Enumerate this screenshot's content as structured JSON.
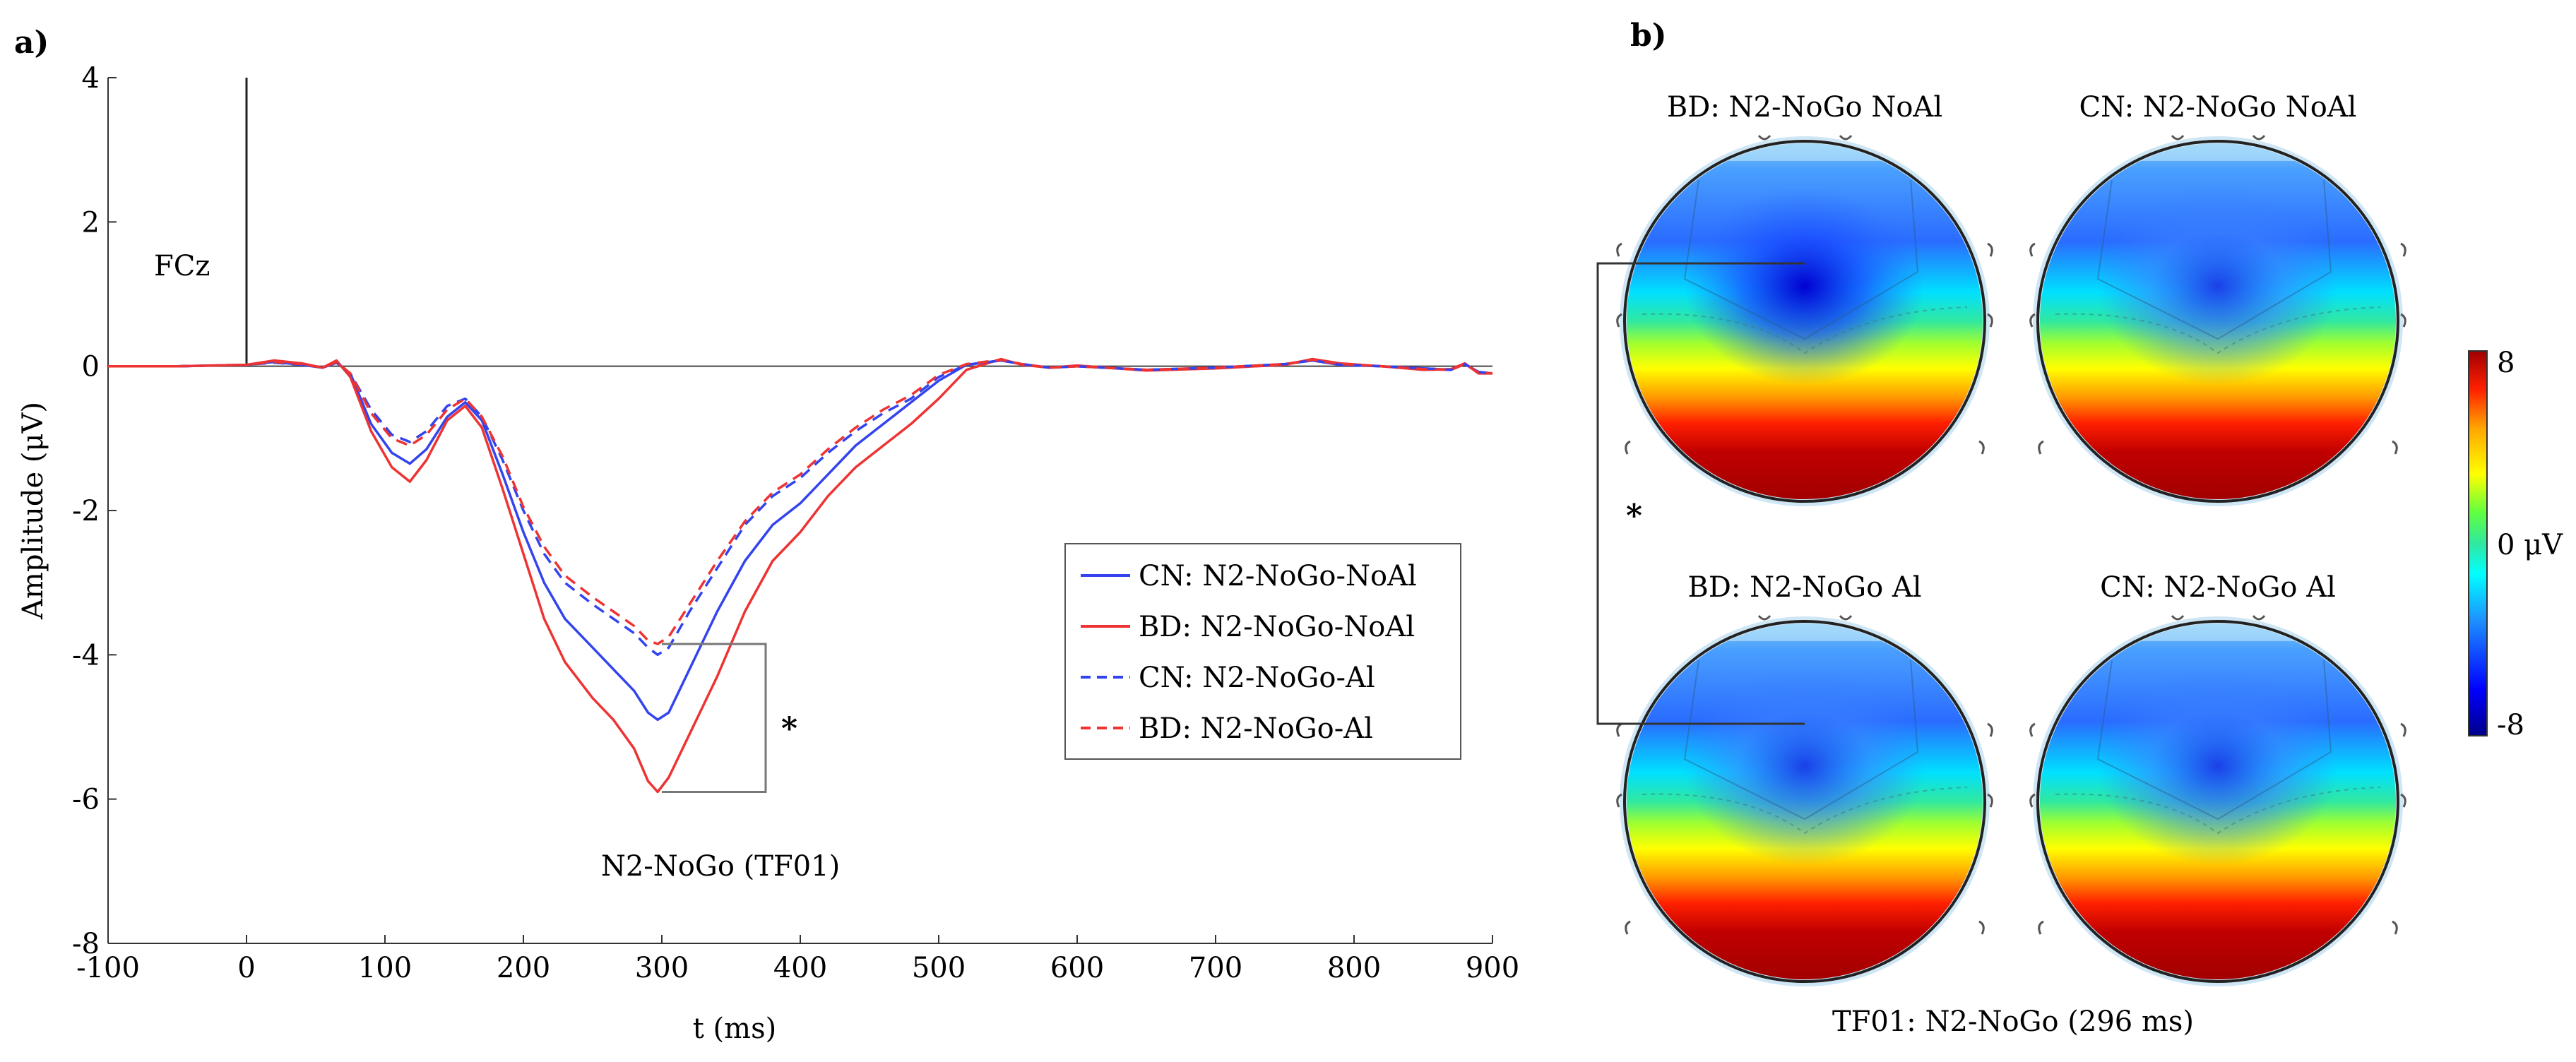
{
  "panels": {
    "a": {
      "label": "a)"
    },
    "b": {
      "label": "b)"
    }
  },
  "chart_data": {
    "type": "line",
    "xlabel": "t (ms)",
    "ylabel": "Amplitude (μV)",
    "xlim": [
      -100,
      900
    ],
    "ylim": [
      -8,
      4
    ],
    "xticks": [
      "-100",
      "0",
      "100",
      "200",
      "300",
      "400",
      "500",
      "600",
      "700",
      "800",
      "900"
    ],
    "yticks": [
      "4",
      "2",
      "0",
      "-2",
      "-4",
      "-6",
      "-8"
    ],
    "channel_label": "FCz",
    "component_label": "N2-NoGo (TF01)",
    "significance_marker": "*",
    "legend_position": "right",
    "grid": false,
    "series": [
      {
        "name": "CN: N2-NoGo-NoAl",
        "color": "#3344ee",
        "dash": "solid",
        "points": [
          [
            -100,
            0
          ],
          [
            -50,
            0
          ],
          [
            0,
            0.02
          ],
          [
            20,
            0.06
          ],
          [
            40,
            0.02
          ],
          [
            55,
            -0.02
          ],
          [
            65,
            0.05
          ],
          [
            75,
            -0.1
          ],
          [
            90,
            -0.8
          ],
          [
            105,
            -1.2
          ],
          [
            118,
            -1.35
          ],
          [
            130,
            -1.15
          ],
          [
            145,
            -0.7
          ],
          [
            158,
            -0.5
          ],
          [
            170,
            -0.75
          ],
          [
            185,
            -1.5
          ],
          [
            200,
            -2.3
          ],
          [
            215,
            -3.0
          ],
          [
            230,
            -3.5
          ],
          [
            250,
            -3.9
          ],
          [
            265,
            -4.2
          ],
          [
            280,
            -4.5
          ],
          [
            290,
            -4.8
          ],
          [
            297,
            -4.9
          ],
          [
            305,
            -4.8
          ],
          [
            320,
            -4.2
          ],
          [
            340,
            -3.4
          ],
          [
            360,
            -2.7
          ],
          [
            380,
            -2.2
          ],
          [
            400,
            -1.9
          ],
          [
            420,
            -1.5
          ],
          [
            440,
            -1.1
          ],
          [
            460,
            -0.8
          ],
          [
            480,
            -0.5
          ],
          [
            500,
            -0.2
          ],
          [
            520,
            0.02
          ],
          [
            545,
            0.08
          ],
          [
            560,
            0.03
          ],
          [
            580,
            -0.02
          ],
          [
            600,
            0
          ],
          [
            650,
            -0.05
          ],
          [
            700,
            -0.02
          ],
          [
            750,
            0.03
          ],
          [
            770,
            0.08
          ],
          [
            790,
            0.02
          ],
          [
            820,
            0
          ],
          [
            850,
            -0.03
          ],
          [
            870,
            -0.05
          ],
          [
            880,
            0.03
          ],
          [
            890,
            -0.08
          ],
          [
            900,
            -0.1
          ]
        ]
      },
      {
        "name": "BD: N2-NoGo-NoAl",
        "color": "#ee3333",
        "dash": "solid",
        "points": [
          [
            -100,
            0
          ],
          [
            -50,
            0
          ],
          [
            0,
            0.02
          ],
          [
            20,
            0.08
          ],
          [
            40,
            0.04
          ],
          [
            55,
            -0.02
          ],
          [
            65,
            0.08
          ],
          [
            75,
            -0.15
          ],
          [
            90,
            -0.9
          ],
          [
            105,
            -1.4
          ],
          [
            118,
            -1.6
          ],
          [
            130,
            -1.3
          ],
          [
            145,
            -0.75
          ],
          [
            158,
            -0.55
          ],
          [
            170,
            -0.85
          ],
          [
            185,
            -1.7
          ],
          [
            200,
            -2.6
          ],
          [
            215,
            -3.5
          ],
          [
            230,
            -4.1
          ],
          [
            250,
            -4.6
          ],
          [
            265,
            -4.9
          ],
          [
            280,
            -5.3
          ],
          [
            290,
            -5.75
          ],
          [
            297,
            -5.9
          ],
          [
            305,
            -5.7
          ],
          [
            320,
            -5.1
          ],
          [
            340,
            -4.3
          ],
          [
            360,
            -3.4
          ],
          [
            380,
            -2.7
          ],
          [
            400,
            -2.3
          ],
          [
            420,
            -1.8
          ],
          [
            440,
            -1.4
          ],
          [
            460,
            -1.1
          ],
          [
            480,
            -0.8
          ],
          [
            500,
            -0.45
          ],
          [
            520,
            -0.05
          ],
          [
            545,
            0.1
          ],
          [
            560,
            0.02
          ],
          [
            580,
            -0.02
          ],
          [
            600,
            0.01
          ],
          [
            650,
            -0.06
          ],
          [
            700,
            -0.03
          ],
          [
            750,
            0.02
          ],
          [
            770,
            0.1
          ],
          [
            790,
            0.04
          ],
          [
            820,
            0
          ],
          [
            850,
            -0.05
          ],
          [
            870,
            -0.04
          ],
          [
            880,
            0.04
          ],
          [
            890,
            -0.1
          ],
          [
            900,
            -0.1
          ]
        ]
      },
      {
        "name": "CN: N2-NoGo-Al",
        "color": "#3344ee",
        "dash": "dashed",
        "points": [
          [
            -100,
            0
          ],
          [
            -50,
            0
          ],
          [
            0,
            0.02
          ],
          [
            20,
            0.05
          ],
          [
            40,
            0.02
          ],
          [
            55,
            -0.02
          ],
          [
            65,
            0.05
          ],
          [
            75,
            -0.1
          ],
          [
            90,
            -0.6
          ],
          [
            105,
            -0.95
          ],
          [
            118,
            -1.05
          ],
          [
            130,
            -0.9
          ],
          [
            145,
            -0.55
          ],
          [
            158,
            -0.45
          ],
          [
            170,
            -0.7
          ],
          [
            185,
            -1.3
          ],
          [
            200,
            -2.0
          ],
          [
            215,
            -2.6
          ],
          [
            230,
            -3.0
          ],
          [
            250,
            -3.3
          ],
          [
            265,
            -3.5
          ],
          [
            280,
            -3.7
          ],
          [
            290,
            -3.9
          ],
          [
            297,
            -4.0
          ],
          [
            305,
            -3.9
          ],
          [
            320,
            -3.4
          ],
          [
            340,
            -2.8
          ],
          [
            360,
            -2.2
          ],
          [
            380,
            -1.8
          ],
          [
            400,
            -1.55
          ],
          [
            420,
            -1.2
          ],
          [
            440,
            -0.9
          ],
          [
            460,
            -0.65
          ],
          [
            480,
            -0.45
          ],
          [
            500,
            -0.15
          ],
          [
            520,
            0.02
          ],
          [
            545,
            0.08
          ],
          [
            560,
            0.03
          ],
          [
            580,
            -0.02
          ],
          [
            600,
            0
          ],
          [
            650,
            -0.05
          ],
          [
            700,
            -0.02
          ],
          [
            750,
            0.03
          ],
          [
            770,
            0.08
          ],
          [
            790,
            0.02
          ],
          [
            820,
            0
          ],
          [
            850,
            -0.03
          ],
          [
            870,
            -0.05
          ],
          [
            880,
            0.03
          ],
          [
            890,
            -0.08
          ],
          [
            900,
            -0.1
          ]
        ]
      },
      {
        "name": "BD: N2-NoGo-Al",
        "color": "#ee3333",
        "dash": "dashed",
        "points": [
          [
            -100,
            0
          ],
          [
            -50,
            0
          ],
          [
            0,
            0.02
          ],
          [
            20,
            0.06
          ],
          [
            40,
            0.03
          ],
          [
            55,
            -0.02
          ],
          [
            65,
            0.06
          ],
          [
            75,
            -0.1
          ],
          [
            90,
            -0.65
          ],
          [
            105,
            -1.0
          ],
          [
            118,
            -1.1
          ],
          [
            130,
            -0.95
          ],
          [
            145,
            -0.6
          ],
          [
            158,
            -0.45
          ],
          [
            170,
            -0.7
          ],
          [
            185,
            -1.25
          ],
          [
            200,
            -1.95
          ],
          [
            215,
            -2.5
          ],
          [
            230,
            -2.9
          ],
          [
            250,
            -3.2
          ],
          [
            265,
            -3.4
          ],
          [
            280,
            -3.6
          ],
          [
            290,
            -3.8
          ],
          [
            297,
            -3.85
          ],
          [
            305,
            -3.75
          ],
          [
            320,
            -3.3
          ],
          [
            340,
            -2.7
          ],
          [
            360,
            -2.15
          ],
          [
            380,
            -1.75
          ],
          [
            400,
            -1.5
          ],
          [
            420,
            -1.15
          ],
          [
            440,
            -0.85
          ],
          [
            460,
            -0.6
          ],
          [
            480,
            -0.4
          ],
          [
            500,
            -0.12
          ],
          [
            520,
            0.03
          ],
          [
            545,
            0.09
          ],
          [
            560,
            0.03
          ],
          [
            580,
            -0.02
          ],
          [
            600,
            0
          ],
          [
            650,
            -0.05
          ],
          [
            700,
            -0.02
          ],
          [
            750,
            0.03
          ],
          [
            770,
            0.09
          ],
          [
            790,
            0.03
          ],
          [
            820,
            0
          ],
          [
            850,
            -0.04
          ],
          [
            870,
            -0.05
          ],
          [
            880,
            0.03
          ],
          [
            890,
            -0.09
          ],
          [
            900,
            -0.1
          ]
        ]
      }
    ]
  },
  "topomaps": {
    "maps": [
      {
        "title": "BD: N2-NoGo NoAl"
      },
      {
        "title": "CN: N2-NoGo NoAl"
      },
      {
        "title": "BD: N2-NoGo Al"
      },
      {
        "title": "CN: N2-NoGo Al"
      }
    ],
    "caption": "TF01: N2-NoGo (296 ms)",
    "significance_marker": "*",
    "colorbar": {
      "max_label": "8",
      "mid_label": "0 μV",
      "min_label": "-8",
      "colors": [
        "#00008b",
        "#0000ff",
        "#1e90ff",
        "#00ffff",
        "#20d0a0",
        "#40ff40",
        "#ffff00",
        "#ffa500",
        "#ff2000",
        "#a00000"
      ]
    }
  }
}
